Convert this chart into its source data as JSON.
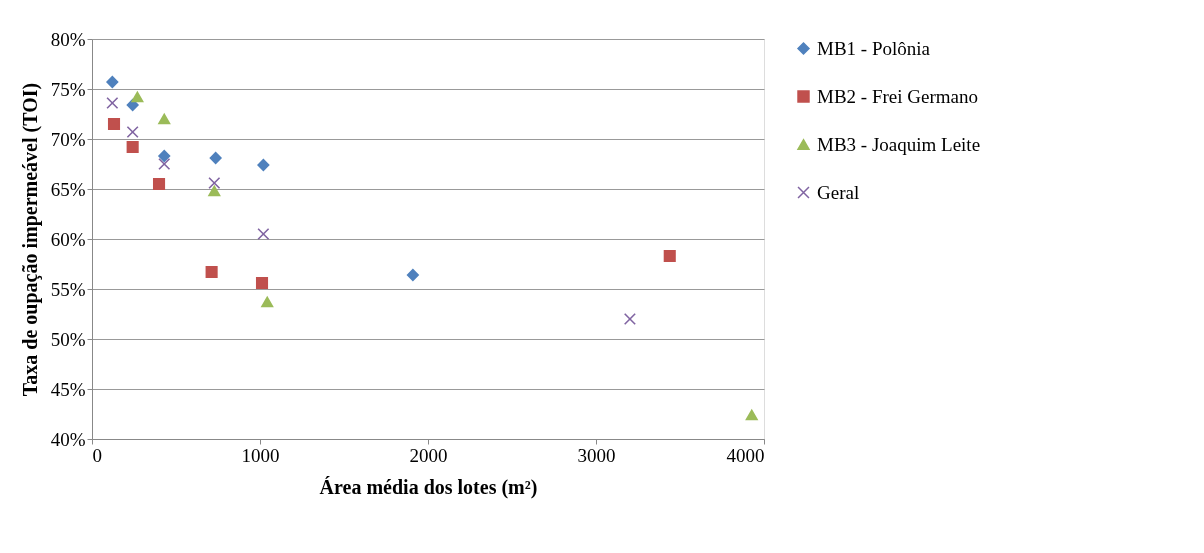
{
  "chart_data": {
    "type": "scatter",
    "xlabel": "Área média dos lotes (m²)",
    "ylabel": "Taxa de oupação impermeável (TOI)",
    "xlim": [
      0,
      4000
    ],
    "xticks": [
      0,
      1000,
      2000,
      3000,
      4000
    ],
    "ylim": [
      40,
      80
    ],
    "yticks": [
      {
        "value": 40,
        "label": "40%"
      },
      {
        "value": 45,
        "label": "45%"
      },
      {
        "value": 50,
        "label": "50%"
      },
      {
        "value": 55,
        "label": "55%"
      },
      {
        "value": 60,
        "label": "60%"
      },
      {
        "value": 65,
        "label": "65%"
      },
      {
        "value": 70,
        "label": "70%"
      },
      {
        "value": 75,
        "label": "75%"
      },
      {
        "value": 80,
        "label": "80%"
      }
    ],
    "grid": "y",
    "legend": "right",
    "series": [
      {
        "name": "MB1 - Polônia",
        "color": "#4f81bd",
        "marker": "diamond",
        "x": [
          121,
          242,
          430,
          736,
          1020,
          1910
        ],
        "values": [
          75.7,
          73.4,
          68.3,
          68.1,
          67.4,
          56.4
        ]
      },
      {
        "name": "MB2 - Frei Germano",
        "color": "#c0504d",
        "marker": "square",
        "x": [
          131,
          242,
          399,
          712,
          1012,
          3439
        ],
        "values": [
          71.5,
          69.2,
          65.5,
          56.7,
          55.6,
          58.3
        ]
      },
      {
        "name": "MB3 - Joaquim Leite",
        "color": "#9bbb59",
        "marker": "triangle",
        "x": [
          270,
          430,
          728,
          1043,
          3927
        ],
        "values": [
          74.2,
          72.0,
          64.8,
          53.7,
          42.4
        ]
      },
      {
        "name": "Geral",
        "color": "#8064a2",
        "marker": "cross",
        "x": [
          121,
          242,
          430,
          728,
          1020,
          3202
        ],
        "values": [
          73.6,
          70.7,
          67.5,
          65.6,
          60.5,
          52.0
        ]
      }
    ]
  }
}
